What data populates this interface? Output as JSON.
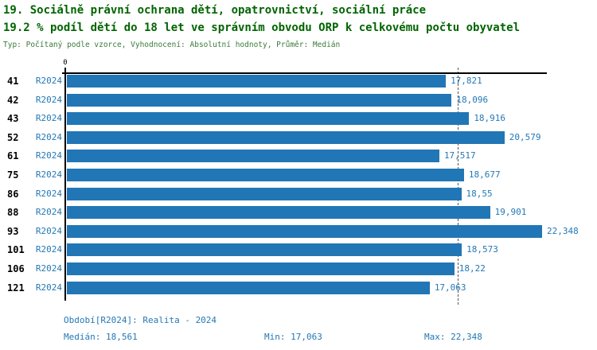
{
  "header": {
    "title": "19. Sociálně právní ochrana dětí, opatrovnictví, sociální práce",
    "subtitle": "19.2 % podíl dětí do 18 let ve správním obvodu ORP k celkovému počtu obyvatel",
    "meta": "Typ: Počítaný podle vzorce, Vyhodnocení: Absolutní hodnoty, Průměr: Medián"
  },
  "chart_data": {
    "type": "bar",
    "orientation": "horizontal",
    "title": "19.2 % podíl dětí do 18 let ve správním obvodu ORP k celkovému počtu obyvatel",
    "xlabel": "",
    "ylabel": "",
    "xlim": [
      0,
      22.6
    ],
    "axis_zero_label": "0",
    "grid": false,
    "legend": "none",
    "categories": [
      "41",
      "42",
      "43",
      "52",
      "61",
      "75",
      "86",
      "88",
      "93",
      "101",
      "106",
      "121"
    ],
    "series_period": "R2024",
    "rows": [
      {
        "id": "41",
        "period": "R2024",
        "value": 17.821,
        "label": "17,821"
      },
      {
        "id": "42",
        "period": "R2024",
        "value": 18.096,
        "label": "18,096"
      },
      {
        "id": "43",
        "period": "R2024",
        "value": 18.916,
        "label": "18,916"
      },
      {
        "id": "52",
        "period": "R2024",
        "value": 20.579,
        "label": "20,579"
      },
      {
        "id": "61",
        "period": "R2024",
        "value": 17.517,
        "label": "17,517"
      },
      {
        "id": "75",
        "period": "R2024",
        "value": 18.677,
        "label": "18,677"
      },
      {
        "id": "86",
        "period": "R2024",
        "value": 18.55,
        "label": "18,55"
      },
      {
        "id": "88",
        "period": "R2024",
        "value": 19.901,
        "label": "19,901"
      },
      {
        "id": "93",
        "period": "R2024",
        "value": 22.348,
        "label": "22,348"
      },
      {
        "id": "101",
        "period": "R2024",
        "value": 18.573,
        "label": "18,573"
      },
      {
        "id": "106",
        "period": "R2024",
        "value": 18.22,
        "label": "18,22"
      },
      {
        "id": "121",
        "period": "R2024",
        "value": 17.063,
        "label": "17,063"
      }
    ],
    "median_value": 18.561,
    "min_value": 17.063,
    "max_value": 22.348
  },
  "colors": {
    "title_green": "#006400",
    "meta_green": "#3a7a3a",
    "text_blue": "#2478B6",
    "bar_blue": "#2176B5",
    "axis_black": "#000000"
  },
  "footer": {
    "period_info": "Období[R2024]: Realita - 2024",
    "median": "Medián: 18,561",
    "min": "Min: 17,063",
    "max": "Max: 22,348"
  }
}
